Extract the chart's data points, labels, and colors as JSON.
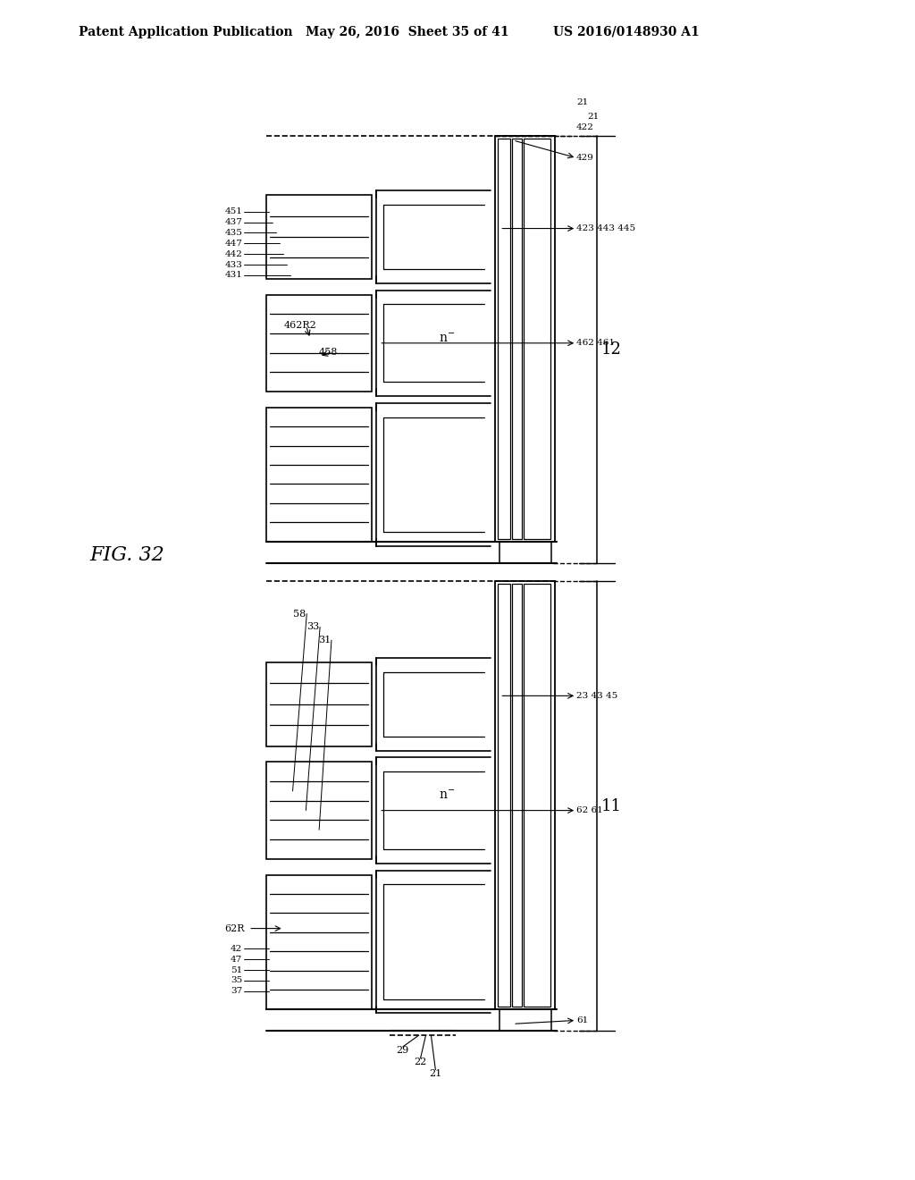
{
  "bg_color": "#ffffff",
  "header_left": "Patent Application Publication",
  "header_mid": "May 26, 2016  Sheet 35 of 41",
  "header_right": "US 2016/0148930 A1",
  "fig_label": "FIG. 32"
}
